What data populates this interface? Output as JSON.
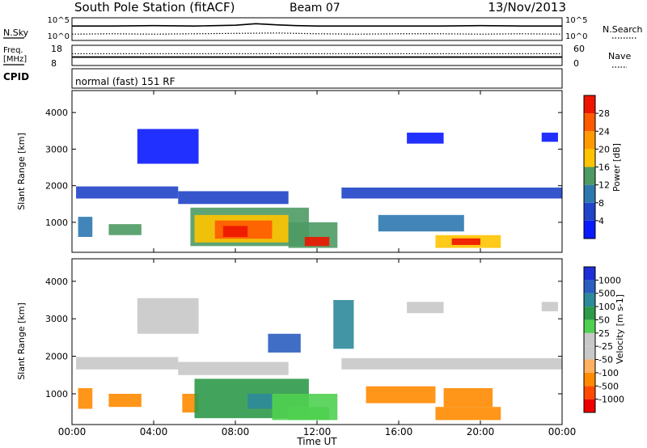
{
  "header": {
    "station": "South Pole Station (fitACF)",
    "beam": "Beam 07",
    "date": "13/Nov/2013"
  },
  "colors": {
    "power_scale": [
      "#0a1aff",
      "#1f44c8",
      "#2e78b0",
      "#4e9a64",
      "#ffc400",
      "#ff9a00",
      "#ff5a00",
      "#ee1400"
    ],
    "velocity_scale": [
      "#ee0000",
      "#ff4a00",
      "#ff8a00",
      "#ffb060",
      "#c8c8c8",
      "#c8c8c8",
      "#50d050",
      "#2e9a4a",
      "#2e8a9a",
      "#2b5ec0",
      "#1e2ed8"
    ],
    "noise_line": "#000000"
  },
  "chart_data": [
    {
      "type": "line",
      "panel": "noise",
      "left_label": "N.Sky",
      "right_label": "N.Search",
      "left_ticks": [
        "10^5",
        "10^0"
      ],
      "right_ticks": [
        "10^5",
        "10^0"
      ],
      "x_range": [
        0,
        24
      ],
      "series": [
        {
          "name": "N.Sky",
          "style": "solid",
          "x": [
            0,
            2,
            4,
            6,
            8,
            9,
            10,
            11,
            12,
            14,
            16,
            18,
            20,
            22,
            24
          ],
          "y": [
            3.3,
            3.3,
            3.4,
            3.3,
            3.5,
            3.9,
            3.6,
            3.4,
            3.3,
            3.3,
            3.3,
            3.3,
            3.4,
            3.3,
            3.3
          ]
        },
        {
          "name": "N.Search",
          "style": "dotted",
          "x": [
            0,
            2,
            4,
            6,
            8,
            10,
            12,
            14,
            16,
            18,
            20,
            22,
            24
          ],
          "y": [
            1.2,
            1.3,
            1.2,
            1.3,
            1.4,
            1.5,
            1.3,
            1.2,
            1.3,
            1.3,
            1.2,
            1.3,
            1.2
          ]
        }
      ]
    },
    {
      "type": "line",
      "panel": "frequency",
      "left_label": "Freq.",
      "left_unit": "[MHz]",
      "right_label": "Nave",
      "left_ticks": [
        "18",
        "8"
      ],
      "right_ticks": [
        "60",
        "0"
      ],
      "x_range": [
        0,
        24
      ],
      "series": [
        {
          "name": "Freq.",
          "style": "solid",
          "x": [
            0,
            24
          ],
          "y": [
            12.3,
            12.3
          ]
        },
        {
          "name": "Nave",
          "style": "dotted",
          "x": [
            0,
            24
          ],
          "y": [
            37,
            37
          ]
        }
      ]
    },
    {
      "type": "table",
      "panel": "cpid",
      "label": "CPID",
      "program": "normal (fast) 151 RF"
    },
    {
      "type": "heatmap",
      "panel": "power",
      "ylabel": "Slant Range [km]",
      "ylim": [
        180,
        4600
      ],
      "yticks": [
        1000,
        2000,
        3000,
        4000
      ],
      "xlim": [
        0,
        24
      ],
      "colorbar_label": "Power [dB]",
      "colorbar_ticks": [
        "28",
        "24",
        "20",
        "16",
        "12",
        "8",
        "4"
      ],
      "regions": [
        {
          "t0": 0.2,
          "t1": 5.2,
          "r0": 1650,
          "r1": 1980,
          "level": 1
        },
        {
          "t0": 5.2,
          "t1": 10.6,
          "r0": 1500,
          "r1": 1850,
          "level": 1
        },
        {
          "t0": 13.2,
          "t1": 24,
          "r0": 1650,
          "r1": 1950,
          "level": 1
        },
        {
          "t0": 3.2,
          "t1": 6.2,
          "r0": 2600,
          "r1": 3550,
          "level": 0
        },
        {
          "t0": 16.4,
          "t1": 18.2,
          "r0": 3150,
          "r1": 3450,
          "level": 0
        },
        {
          "t0": 23.0,
          "t1": 23.8,
          "r0": 3200,
          "r1": 3450,
          "level": 0
        },
        {
          "t0": 0.3,
          "t1": 1.0,
          "r0": 600,
          "r1": 1150,
          "level": 2
        },
        {
          "t0": 1.8,
          "t1": 3.4,
          "r0": 650,
          "r1": 950,
          "level": 3
        },
        {
          "t0": 5.8,
          "t1": 11.6,
          "r0": 350,
          "r1": 1400,
          "level": 3
        },
        {
          "t0": 6.0,
          "t1": 10.6,
          "r0": 450,
          "r1": 1200,
          "level": 4
        },
        {
          "t0": 7.0,
          "t1": 9.8,
          "r0": 550,
          "r1": 1050,
          "level": 6
        },
        {
          "t0": 7.4,
          "t1": 8.6,
          "r0": 600,
          "r1": 900,
          "level": 7
        },
        {
          "t0": 10.6,
          "t1": 13.0,
          "r0": 300,
          "r1": 1000,
          "level": 3
        },
        {
          "t0": 11.4,
          "t1": 12.6,
          "r0": 350,
          "r1": 600,
          "level": 7
        },
        {
          "t0": 15.0,
          "t1": 19.2,
          "r0": 750,
          "r1": 1200,
          "level": 2
        },
        {
          "t0": 17.8,
          "t1": 21.0,
          "r0": 300,
          "r1": 650,
          "level": 4
        },
        {
          "t0": 18.6,
          "t1": 20.0,
          "r0": 380,
          "r1": 560,
          "level": 7
        }
      ]
    },
    {
      "type": "heatmap",
      "panel": "velocity",
      "ylabel": "Slant Range [km]",
      "ylim": [
        180,
        4600
      ],
      "yticks": [
        1000,
        2000,
        3000,
        4000
      ],
      "xlim": [
        0,
        24
      ],
      "xlabel": "Time UT",
      "xticks": [
        "00:00",
        "04:00",
        "08:00",
        "12:00",
        "16:00",
        "20:00",
        "00:00"
      ],
      "colorbar_label": "Velocity [m s-1]",
      "colorbar_ticks": [
        "1000",
        "500",
        "100",
        "50",
        "25",
        "-25",
        "-50",
        "-100",
        "-500",
        "-1000"
      ],
      "regions": [
        {
          "t0": 0.2,
          "t1": 5.2,
          "r0": 1650,
          "r1": 1980,
          "level": 4
        },
        {
          "t0": 5.2,
          "t1": 10.6,
          "r0": 1500,
          "r1": 1850,
          "level": 4
        },
        {
          "t0": 13.2,
          "t1": 24,
          "r0": 1650,
          "r1": 1950,
          "level": 4
        },
        {
          "t0": 3.2,
          "t1": 6.2,
          "r0": 2600,
          "r1": 3550,
          "level": 4
        },
        {
          "t0": 16.4,
          "t1": 18.2,
          "r0": 3150,
          "r1": 3450,
          "level": 4
        },
        {
          "t0": 23.0,
          "t1": 23.8,
          "r0": 3200,
          "r1": 3450,
          "level": 4
        },
        {
          "t0": 0.3,
          "t1": 1.0,
          "r0": 600,
          "r1": 1150,
          "level": 2
        },
        {
          "t0": 1.8,
          "t1": 3.4,
          "r0": 650,
          "r1": 1000,
          "level": 2
        },
        {
          "t0": 5.4,
          "t1": 6.2,
          "r0": 500,
          "r1": 1000,
          "level": 2
        },
        {
          "t0": 6.0,
          "t1": 11.6,
          "r0": 350,
          "r1": 1400,
          "level": 7
        },
        {
          "t0": 8.6,
          "t1": 9.8,
          "r0": 600,
          "r1": 1000,
          "level": 8
        },
        {
          "t0": 9.8,
          "t1": 13.0,
          "r0": 300,
          "r1": 1000,
          "level": 6
        },
        {
          "t0": 10.6,
          "t1": 12.6,
          "r0": 300,
          "r1": 650,
          "level": 6
        },
        {
          "t0": 14.4,
          "t1": 17.8,
          "r0": 750,
          "r1": 1200,
          "level": 2
        },
        {
          "t0": 17.8,
          "t1": 21.0,
          "r0": 300,
          "r1": 650,
          "level": 2
        },
        {
          "t0": 18.2,
          "t1": 20.6,
          "r0": 650,
          "r1": 1150,
          "level": 2
        },
        {
          "t0": 9.6,
          "t1": 11.2,
          "r0": 2100,
          "r1": 2600,
          "level": 9
        },
        {
          "t0": 12.8,
          "t1": 13.8,
          "r0": 2200,
          "r1": 3500,
          "level": 8
        }
      ]
    }
  ]
}
